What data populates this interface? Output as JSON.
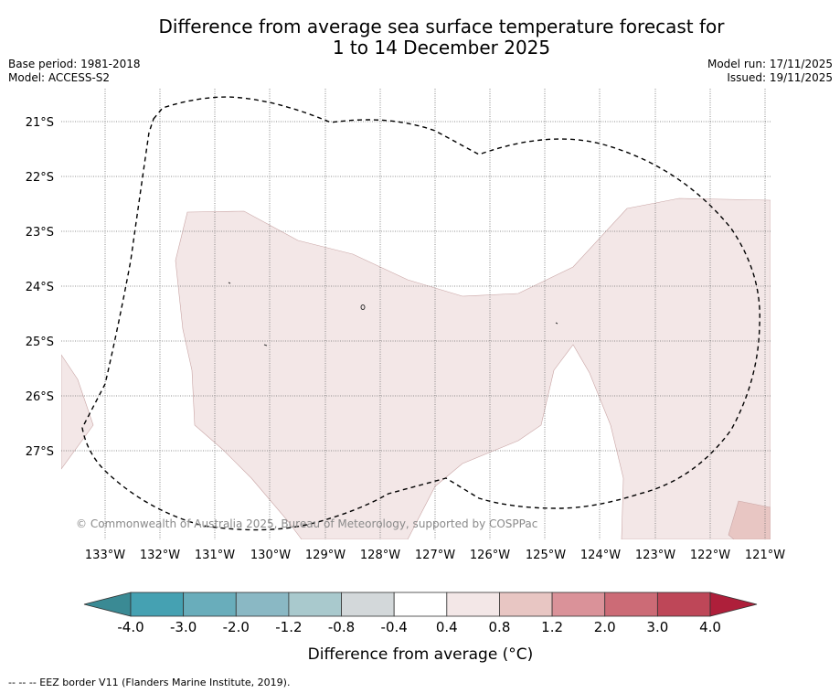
{
  "title_line1": "Difference from average sea surface temperature forecast for",
  "title_line2": "1 to 14 December 2025",
  "meta_left": {
    "base_period": "Base period: 1981-2018",
    "model": "Model: ACCESS-S2"
  },
  "meta_right": {
    "model_run": "Model run: 17/11/2025",
    "issued": "Issued: 19/11/2025"
  },
  "map": {
    "lat_labels": [
      "21°S",
      "22°S",
      "23°S",
      "24°S",
      "25°S",
      "26°S",
      "27°S"
    ],
    "lon_labels": [
      "133°W",
      "132°W",
      "131°W",
      "130°W",
      "129°W",
      "128°W",
      "127°W",
      "126°W",
      "125°W",
      "124°W",
      "123°W",
      "122°W",
      "121°W"
    ],
    "copyright": "© Commonwealth of Australia 2025, Bureau of Meteorology, supported by COSPPac",
    "colors": {
      "anomaly_0_4_0_8": "#f3e7e7",
      "anomaly_0_8_1_2": "#e8c6c3"
    }
  },
  "colorbar": {
    "labels": [
      "-4.0",
      "-3.0",
      "-2.0",
      "-1.2",
      "-0.8",
      "-0.4",
      "0.4",
      "0.8",
      "1.2",
      "2.0",
      "3.0",
      "4.0"
    ],
    "colors": [
      "#45a1b2",
      "#69adbb",
      "#8ab8c4",
      "#a9c9cd",
      "#d3d8da",
      "#ffffff",
      "#f3e7e7",
      "#e8c6c3",
      "#da9299",
      "#cc6b76",
      "#be4758"
    ],
    "min_color": "#3a8a94",
    "max_color": "#ae1f3a",
    "title": "Difference from average (°C)"
  },
  "legend_footer": "--  --  -- EEZ border V11 (Flanders Marine Institute, 2019)."
}
